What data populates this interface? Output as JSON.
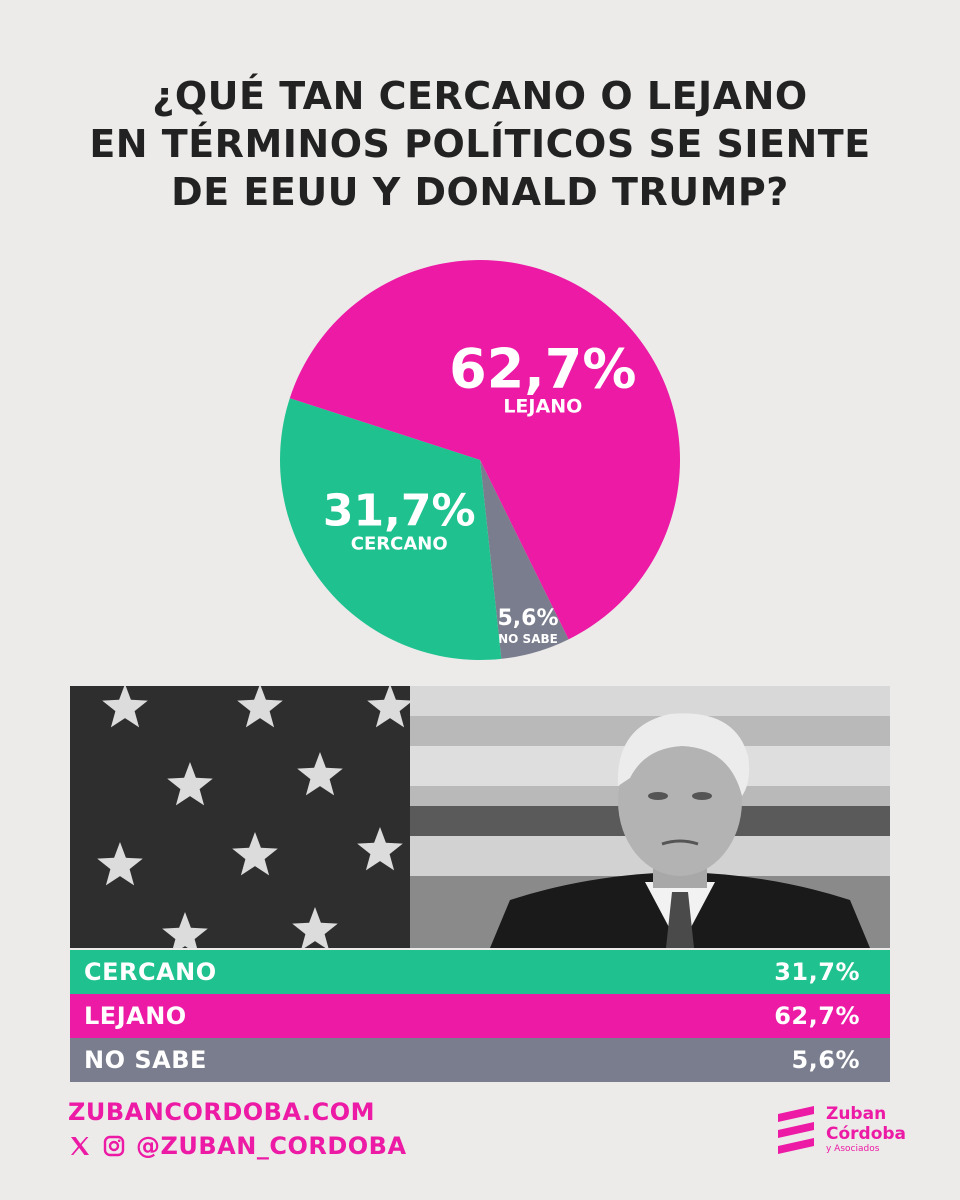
{
  "title_lines": [
    "¿QUÉ TAN CERCANO O LEJANO",
    "EN TÉRMINOS POLÍTICOS SE SIENTE",
    "DE EEUU Y DONALD TRUMP?"
  ],
  "chart_data": {
    "type": "pie",
    "slices": [
      {
        "label": "LEJANO",
        "value": 62.7,
        "value_label": "62,7%",
        "color": "#ec1aa4"
      },
      {
        "label": "NO SABE",
        "value": 5.6,
        "value_label": "5,6%",
        "color": "#7a7d8e"
      },
      {
        "label": "CERCANO",
        "value": 31.7,
        "value_label": "31,7%",
        "color": "#1fc28f"
      }
    ]
  },
  "table": {
    "rows": [
      {
        "label": "CERCANO",
        "value": "31,7%",
        "color": "#1fc28f"
      },
      {
        "label": "LEJANO",
        "value": "62,7%",
        "color": "#ec1aa4"
      },
      {
        "label": "NO SABE",
        "value": "5,6%",
        "color": "#7a7d8e"
      }
    ]
  },
  "footer": {
    "website": "ZUBANCORDOBA.COM",
    "handle": "@ZUBAN_CORDOBA",
    "icons": [
      "x-icon",
      "instagram-icon"
    ]
  },
  "logo": {
    "line1": "Zuban",
    "line2": "Córdoba",
    "line3": "y Asociados"
  },
  "photo": {
    "icon": "portrait-photo"
  },
  "colors": {
    "accent": "#ec1aa4",
    "green": "#1fc28f",
    "gray": "#7a7d8e",
    "background": "#ecebea"
  }
}
